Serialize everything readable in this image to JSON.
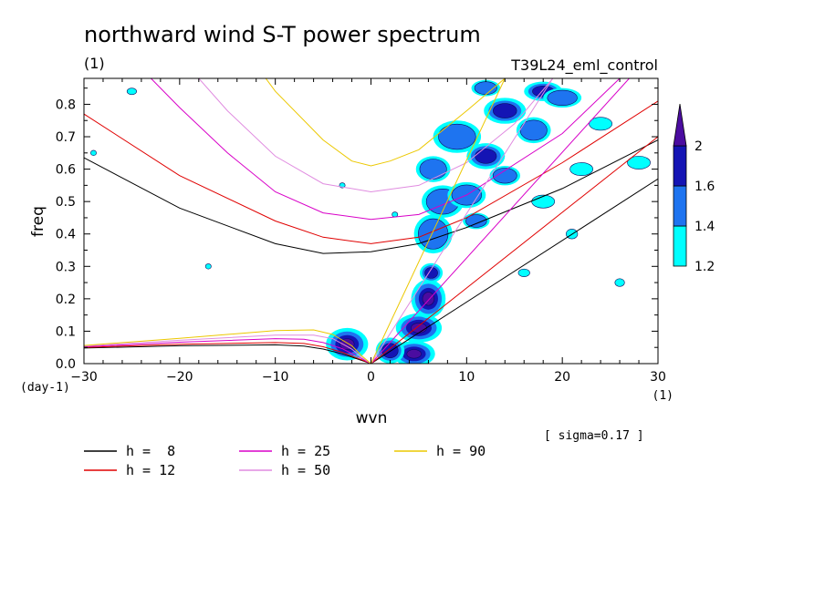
{
  "chart_data": {
    "type": "contour",
    "title": "northward wind S-T power spectrum",
    "subtitle_left": "(1)",
    "subtitle_right": "T39L24_eml_control",
    "xlabel": "wvn",
    "ylabel": "freq",
    "x_unit_label": "(1)",
    "y_unit_label": "(day-1)",
    "xlim": [
      -30,
      30
    ],
    "ylim": [
      0,
      0.88
    ],
    "xticks": [
      -30,
      -20,
      -10,
      0,
      10,
      20,
      30
    ],
    "xtick_labels": [
      "−30",
      "−20",
      "−10",
      "0",
      "10",
      "20",
      "30"
    ],
    "yticks": [
      0,
      0.1,
      0.2,
      0.3,
      0.4,
      0.5,
      0.6,
      0.7,
      0.8
    ],
    "ytick_labels": [
      "0.0",
      "0.1",
      "0.2",
      "0.3",
      "0.4",
      "0.5",
      "0.6",
      "0.7",
      "0.8"
    ],
    "colorbar": {
      "levels": [
        1.2,
        1.4,
        1.6,
        2
      ],
      "level_labels": [
        "1.2",
        "1.4",
        "1.6",
        "2"
      ],
      "colors": [
        "#00ffff",
        "#1e74f0",
        "#1414b4",
        "#4b0ca0"
      ]
    },
    "note": "[ sigma=0.17 ]",
    "series": [
      {
        "name": "h =  8",
        "h": 8,
        "color": "#000000"
      },
      {
        "name": "h = 12",
        "h": 12,
        "color": "#e00000"
      },
      {
        "name": "h = 25",
        "h": 25,
        "color": "#d800c8"
      },
      {
        "name": "h = 50",
        "h": 50,
        "color": "#e08ce0"
      },
      {
        "name": "h = 90",
        "h": 90,
        "color": "#ecc800"
      }
    ],
    "curves": {
      "kelvin": [
        {
          "h": 8,
          "x": [
            0,
            30
          ],
          "y": [
            0,
            0.57
          ]
        },
        {
          "h": 12,
          "x": [
            0,
            30
          ],
          "y": [
            0,
            0.7
          ]
        },
        {
          "h": 25,
          "x": [
            0,
            27
          ],
          "y": [
            0,
            0.88
          ]
        },
        {
          "h": 50,
          "x": [
            0,
            19
          ],
          "y": [
            0,
            0.88
          ]
        },
        {
          "h": 90,
          "x": [
            0,
            14
          ],
          "y": [
            0,
            0.88
          ]
        }
      ],
      "inertia_gravity": [
        {
          "h": 8,
          "x": [
            -30,
            -20,
            -10,
            -5,
            0,
            5,
            10,
            20,
            30
          ],
          "y": [
            0.635,
            0.48,
            0.37,
            0.34,
            0.345,
            0.37,
            0.42,
            0.54,
            0.69
          ]
        },
        {
          "h": 12,
          "x": [
            -30,
            -20,
            -10,
            -5,
            0,
            5,
            10,
            20,
            30
          ],
          "y": [
            0.77,
            0.58,
            0.44,
            0.39,
            0.37,
            0.39,
            0.45,
            0.62,
            0.81
          ]
        },
        {
          "h": 25,
          "x": [
            -23,
            -20,
            -15,
            -10,
            -5,
            0,
            5,
            10,
            20,
            26
          ],
          "y": [
            0.88,
            0.79,
            0.65,
            0.53,
            0.465,
            0.445,
            0.46,
            0.52,
            0.71,
            0.88
          ]
        },
        {
          "h": 50,
          "x": [
            -18,
            -15,
            -10,
            -5,
            0,
            5,
            10,
            15,
            19
          ],
          "y": [
            0.88,
            0.78,
            0.64,
            0.555,
            0.53,
            0.55,
            0.62,
            0.74,
            0.88
          ]
        },
        {
          "h": 90,
          "x": [
            -11,
            -10,
            -5,
            -2,
            0,
            2,
            5,
            10,
            14
          ],
          "y": [
            0.88,
            0.84,
            0.69,
            0.625,
            0.61,
            0.625,
            0.66,
            0.78,
            0.88
          ]
        }
      ],
      "rossby": [
        {
          "h": 8,
          "x": [
            -30,
            -20,
            -10,
            -7,
            -5,
            -3,
            -1,
            0
          ],
          "y": [
            0.048,
            0.055,
            0.058,
            0.054,
            0.045,
            0.03,
            0.01,
            0
          ]
        },
        {
          "h": 12,
          "x": [
            -30,
            -20,
            -10,
            -7,
            -5,
            -3,
            -1,
            0
          ],
          "y": [
            0.05,
            0.06,
            0.065,
            0.062,
            0.052,
            0.035,
            0.012,
            0
          ]
        },
        {
          "h": 25,
          "x": [
            -30,
            -20,
            -10,
            -7,
            -5,
            -3,
            -1,
            0
          ],
          "y": [
            0.052,
            0.066,
            0.077,
            0.075,
            0.065,
            0.046,
            0.016,
            0
          ]
        },
        {
          "h": 50,
          "x": [
            -30,
            -20,
            -10,
            -6,
            -4,
            -2,
            -1,
            0
          ],
          "y": [
            0.054,
            0.072,
            0.088,
            0.088,
            0.077,
            0.045,
            0.02,
            0
          ]
        },
        {
          "h": 90,
          "x": [
            -30,
            -20,
            -10,
            -6,
            -4,
            -2,
            -1,
            0
          ],
          "y": [
            0.056,
            0.078,
            0.102,
            0.104,
            0.09,
            0.055,
            0.025,
            0
          ]
        }
      ]
    },
    "blobs": [
      {
        "x": 4.5,
        "y": 0.03,
        "rx": 2.2,
        "ry": 0.04,
        "level": 4
      },
      {
        "x": 5.0,
        "y": 0.11,
        "rx": 2.4,
        "ry": 0.045,
        "level": 4
      },
      {
        "x": 6.0,
        "y": 0.2,
        "rx": 1.8,
        "ry": 0.06,
        "level": 4
      },
      {
        "x": 6.3,
        "y": 0.28,
        "rx": 1.2,
        "ry": 0.03,
        "level": 3
      },
      {
        "x": -2.5,
        "y": 0.06,
        "rx": 2.2,
        "ry": 0.05,
        "level": 4
      },
      {
        "x": 2.0,
        "y": 0.04,
        "rx": 1.5,
        "ry": 0.04,
        "level": 3
      },
      {
        "x": 6.5,
        "y": 0.4,
        "rx": 2.0,
        "ry": 0.06,
        "level": 2
      },
      {
        "x": 7.5,
        "y": 0.5,
        "rx": 2.2,
        "ry": 0.05,
        "level": 2
      },
      {
        "x": 6.5,
        "y": 0.6,
        "rx": 1.8,
        "ry": 0.04,
        "level": 2
      },
      {
        "x": 10.0,
        "y": 0.52,
        "rx": 2.0,
        "ry": 0.04,
        "level": 2
      },
      {
        "x": 12.0,
        "y": 0.64,
        "rx": 2.0,
        "ry": 0.04,
        "level": 3
      },
      {
        "x": 9.0,
        "y": 0.7,
        "rx": 2.5,
        "ry": 0.05,
        "level": 2
      },
      {
        "x": 14.0,
        "y": 0.78,
        "rx": 2.2,
        "ry": 0.04,
        "level": 3
      },
      {
        "x": 18.0,
        "y": 0.84,
        "rx": 2.0,
        "ry": 0.03,
        "level": 3
      },
      {
        "x": 12.0,
        "y": 0.85,
        "rx": 1.5,
        "ry": 0.025,
        "level": 2
      },
      {
        "x": 17.0,
        "y": 0.72,
        "rx": 1.8,
        "ry": 0.04,
        "level": 2
      },
      {
        "x": 20.0,
        "y": 0.82,
        "rx": 2.0,
        "ry": 0.03,
        "level": 2
      },
      {
        "x": 14.0,
        "y": 0.58,
        "rx": 1.6,
        "ry": 0.03,
        "level": 2
      },
      {
        "x": 11.0,
        "y": 0.44,
        "rx": 1.4,
        "ry": 0.025,
        "level": 2
      },
      {
        "x": 22.0,
        "y": 0.6,
        "rx": 1.2,
        "ry": 0.02,
        "level": 1
      },
      {
        "x": 18.0,
        "y": 0.5,
        "rx": 1.2,
        "ry": 0.02,
        "level": 1
      },
      {
        "x": 24.0,
        "y": 0.74,
        "rx": 1.2,
        "ry": 0.02,
        "level": 1
      },
      {
        "x": 28.0,
        "y": 0.62,
        "rx": 1.2,
        "ry": 0.02,
        "level": 1
      },
      {
        "x": -25.0,
        "y": 0.84,
        "rx": 0.5,
        "ry": 0.01,
        "level": 1
      },
      {
        "x": -17.0,
        "y": 0.3,
        "rx": 0.3,
        "ry": 0.008,
        "level": 1
      },
      {
        "x": -29.0,
        "y": 0.65,
        "rx": 0.3,
        "ry": 0.008,
        "level": 1
      },
      {
        "x": 21.0,
        "y": 0.4,
        "rx": 0.6,
        "ry": 0.015,
        "level": 1
      },
      {
        "x": 26.0,
        "y": 0.25,
        "rx": 0.5,
        "ry": 0.012,
        "level": 1
      },
      {
        "x": 16.0,
        "y": 0.28,
        "rx": 0.6,
        "ry": 0.012,
        "level": 1
      },
      {
        "x": -3.0,
        "y": 0.55,
        "rx": 0.3,
        "ry": 0.008,
        "level": 1
      },
      {
        "x": 2.5,
        "y": 0.46,
        "rx": 0.3,
        "ry": 0.008,
        "level": 1
      }
    ],
    "grid": false,
    "legend_position": "bottom-left"
  }
}
